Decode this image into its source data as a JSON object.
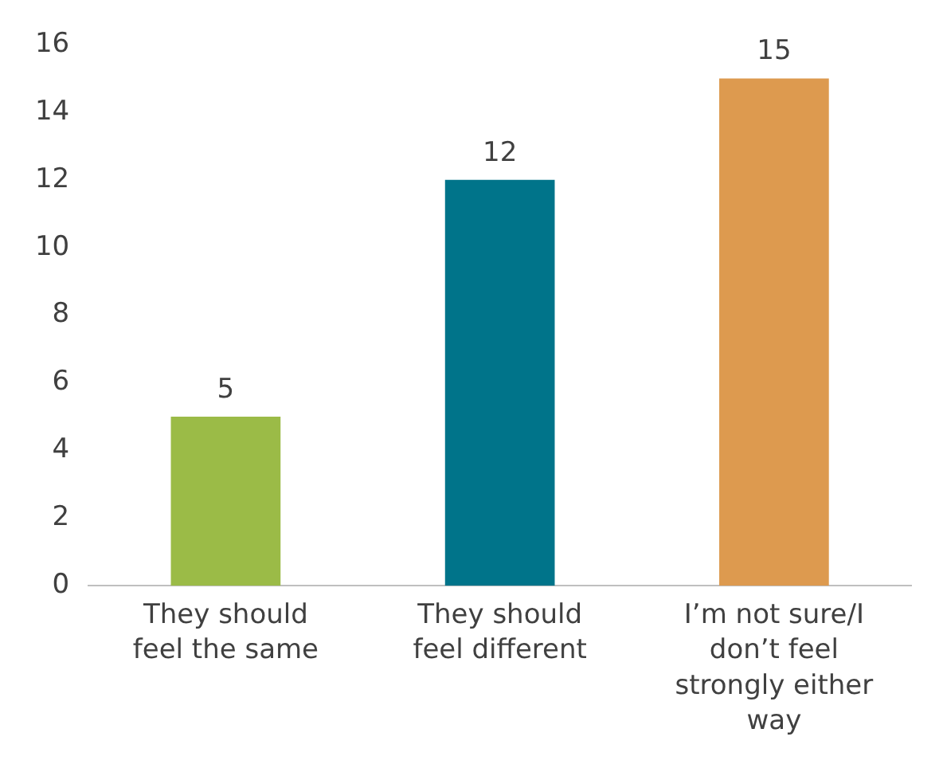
{
  "chart_data": {
    "type": "bar",
    "categories": [
      "They should feel the same",
      "They should feel different",
      "I’m not sure/I don’t feel strongly either way"
    ],
    "values": [
      5,
      12,
      15
    ],
    "colors": [
      "#9bbb47",
      "#00748a",
      "#dd9a4f"
    ],
    "ylim": [
      0,
      16
    ],
    "yticks": [
      0,
      2,
      4,
      6,
      8,
      10,
      12,
      14,
      16
    ],
    "grid": false,
    "legend": false,
    "data_labels": true
  }
}
